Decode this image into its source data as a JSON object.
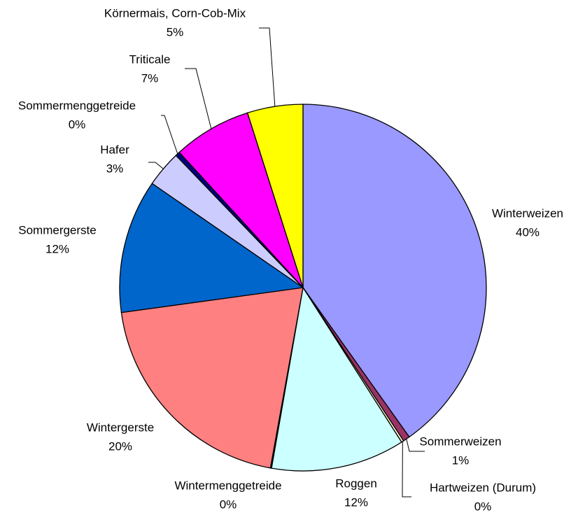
{
  "chart_data": {
    "type": "pie",
    "categories": [
      "Winterweizen",
      "Sommerweizen",
      "Hartweizen (Durum)",
      "Roggen",
      "Wintermenggetreide",
      "Wintergerste",
      "Sommergerste",
      "Hafer",
      "Sommermenggetreide",
      "Triticale",
      "Körnermais, Corn-Cob-Mix"
    ],
    "values": [
      40.2,
      0.6,
      0.2,
      11.8,
      0.1,
      20.0,
      11.8,
      3.2,
      0.4,
      6.9,
      4.9
    ],
    "value_labels": [
      "40%",
      "1%",
      "0%",
      "12%",
      "0%",
      "20%",
      "12%",
      "3%",
      "0%",
      "7%",
      "5%"
    ],
    "colors": [
      "#9999ff",
      "#993366",
      "#ffffcc",
      "#ccffff",
      "#660066",
      "#ff8080",
      "#0066cc",
      "#ccccff",
      "#000080",
      "#ff00ff",
      "#ffff00"
    ]
  }
}
